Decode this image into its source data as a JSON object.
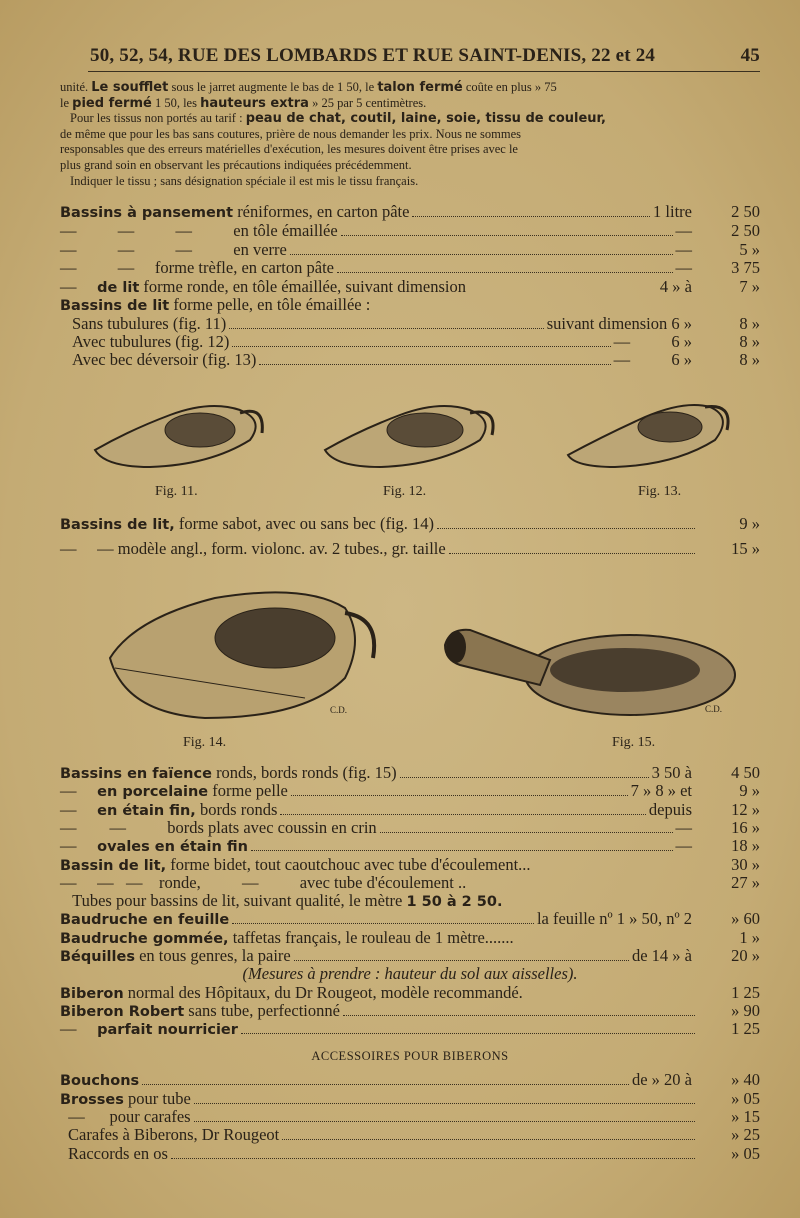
{
  "header": {
    "left": "50, 52, 54, RUE DES LOMBARDS ET RUE SAINT-DENIS, 22 et 24",
    "page": "45"
  },
  "intro": {
    "l1": [
      {
        "t": "unité. "
      },
      {
        "b": "Le soufflet"
      },
      {
        "t": " sous le jarret augmente le bas de 1 50, le "
      },
      {
        "b": "talon fermé"
      },
      {
        "t": " coûte en plus » 75"
      }
    ],
    "l2": [
      {
        "t": "le "
      },
      {
        "b": "pied fermé"
      },
      {
        "t": " 1 50, les "
      },
      {
        "b": "hauteurs extra"
      },
      {
        "t": " » 25 par 5 centimètres."
      }
    ],
    "l3": [
      {
        "t": "Pour les tissus non portés au tarif : "
      },
      {
        "b": "peau de chat, coutil, laine, soie, tissu de couleur,"
      }
    ],
    "l4": [
      {
        "t": "de même que pour les bas sans coutures, prière de nous demander les prix. Nous ne sommes"
      }
    ],
    "l5": [
      {
        "t": "responsables que des erreurs matérielles d'exécution, les mesures doivent être prises avec le"
      }
    ],
    "l6": [
      {
        "t": "plus grand soin en observant les précautions indiquées précédemment."
      }
    ],
    "l7": [
      {
        "t": "Indiquer le tissu ; sans désignation spéciale il est mis le tissu français."
      }
    ]
  },
  "section1": [
    {
      "bold": "Bassins à pansement",
      "text": " réniformes, en carton pâte",
      "dots": true,
      "mid": "1 litre",
      "price": "2 50"
    },
    {
      "text": "—          —          —          en tôle émaillée",
      "dots": true,
      "mid": "—",
      "price": "2 50"
    },
    {
      "text": "—          —          —          en verre",
      "dots": true,
      "mid": "—",
      "price": "5 »"
    },
    {
      "text": "—          —     forme trèfle, en carton pâte",
      "dots": true,
      "mid": "—",
      "price": "3 75"
    },
    {
      "text": "—     ",
      "bold2": "de lit",
      "text2": " forme ronde, en tôle émaillée, suivant dimension",
      "mid": "4 » à",
      "price": "7 »"
    },
    {
      "bold": "Bassins de lit",
      "text": " forme pelle, en tôle émaillée :"
    },
    {
      "text": "Sans tubulures (fig. 11)",
      "dots": true,
      "mid": "suivant dimension 6 »",
      "price": "8 »"
    },
    {
      "text": "Avec tubulures (fig. 12)",
      "dots": true,
      "mid": "—          6 »",
      "price": "8 »"
    },
    {
      "text": "Avec bec déversoir (fig. 13)",
      "dots": true,
      "mid": "—          6 »",
      "price": "8 »"
    }
  ],
  "figures1": [
    "Fig. 11.",
    "Fig. 12.",
    "Fig. 13."
  ],
  "section2": [
    {
      "bold": "Bassins de lit,",
      "text": " forme sabot, avec ou sans bec (fig. 14)",
      "dots": true,
      "mid": "",
      "price": "9 »"
    },
    {
      "text": "—     — modèle angl., form. violonc. av. 2 tubes., gr. taille",
      "dots": true,
      "mid": "",
      "price": "15 »"
    }
  ],
  "figures2": [
    "Fig. 14.",
    "Fig. 15."
  ],
  "figure_marks": [
    "C.D.",
    "C.D."
  ],
  "section3": [
    {
      "bold": "Bassins en faïence",
      "text": " ronds, bords ronds (fig. 15)",
      "dots": true,
      "mid": "3 50 à",
      "price": "4 50"
    },
    {
      "text": "—     ",
      "bold2": "en porcelaine",
      "text2": " forme pelle",
      "dots": true,
      "mid": "7 » 8 » et",
      "price": "9 »"
    },
    {
      "text": "—     ",
      "bold2": "en étain fin,",
      "text2": " bords ronds",
      "dots": true,
      "mid": "depuis",
      "price": "12 »"
    },
    {
      "text": "—        —          bords plats avec coussin en crin",
      "dots": true,
      "mid": "—",
      "price": "16 »"
    },
    {
      "text": "—     ",
      "bold2": "ovales en étain fin",
      "dots": true,
      "mid": "—",
      "price": "18 »"
    },
    {
      "bold": "Bassin de lit,",
      "text": " forme bidet, tout caoutchouc avec tube d'écoulement...",
      "mid": "",
      "price": "30 »"
    },
    {
      "text": "—     —   —    ronde,          —          avec tube d'écoulement ..",
      "mid": "",
      "price": "27 »"
    },
    {
      "text": "   Tubes pour bassins de lit, suivant qualité, le mètre ",
      "bold2": "1 50 à 2 50."
    },
    {
      "bold": "Baudruche en feuille",
      "dots": true,
      "mid": "la feuille nº 1 » 50, nº 2",
      "price": "» 60"
    },
    {
      "bold": "Baudruche gommée,",
      "text": " taffetas français, le rouleau de 1 mètre.......",
      "mid": "",
      "price": "1 »"
    },
    {
      "bold": "Béquilles",
      "text": " en tous genres, la paire",
      "dots": true,
      "mid": "de 14 » à",
      "price": "20 »"
    },
    {
      "italic": "(Mesures à prendre : hauteur du sol aux aisselles)."
    },
    {
      "bold": "Biberon",
      "text": " normal des Hôpitaux, du Dr Rougeot, modèle recommandé.",
      "mid": "",
      "price": "1 25"
    },
    {
      "bold": "Biberon Robert",
      "text": " sans tube, perfectionné",
      "dots": true,
      "mid": "",
      "price": "» 90"
    },
    {
      "text": "—     ",
      "bold2": "parfait nourricier",
      "dots": true,
      "mid": "",
      "price": "1 25"
    }
  ],
  "accessoires_title": "ACCESSOIRES POUR BIBERONS",
  "section4": [
    {
      "bold": "Bouchons",
      "dots": true,
      "mid": "de » 20 à",
      "price": "» 40"
    },
    {
      "bold": "Brosses",
      "text": " pour tube",
      "dots": true,
      "mid": "",
      "price": "» 05"
    },
    {
      "text": "  —      pour carafes",
      "dots": true,
      "mid": "",
      "price": "» 15"
    },
    {
      "text": "Carafes à Biberons, Dr Rougeot",
      "dots": true,
      "mid": "",
      "price": "» 25"
    },
    {
      "text": "Raccords en os",
      "dots": true,
      "mid": "",
      "price": "» 05"
    }
  ],
  "colors": {
    "paper": "#c8b07c",
    "ink": "#2a2218"
  }
}
